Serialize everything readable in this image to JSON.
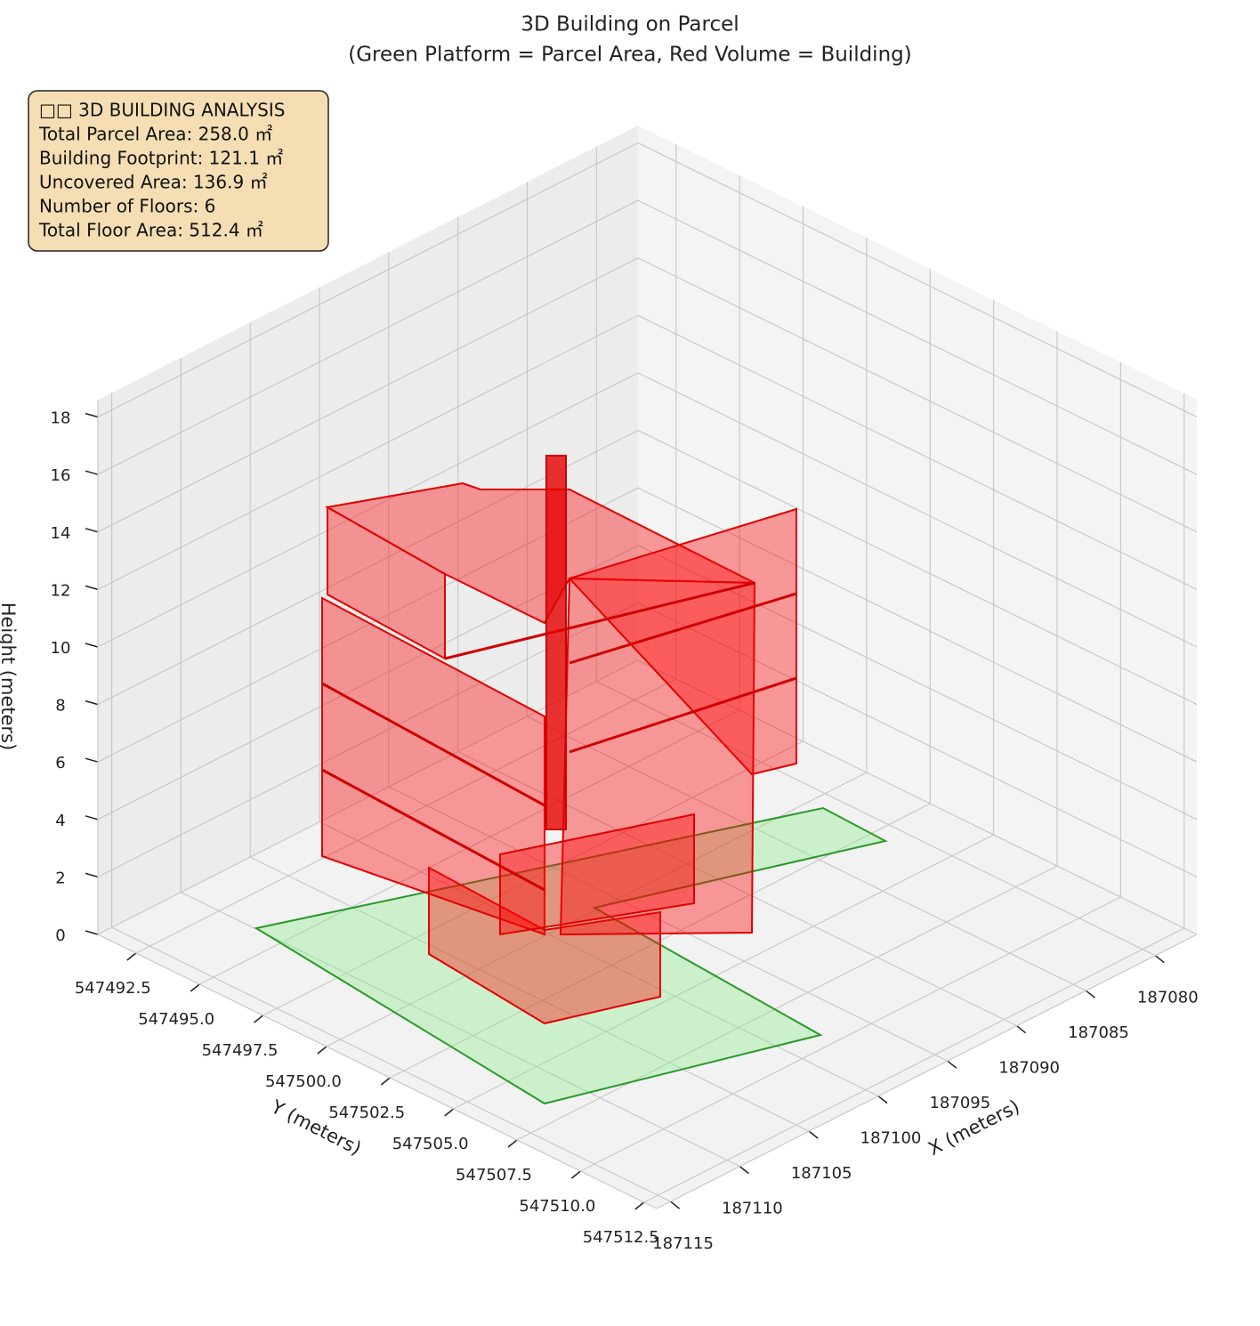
{
  "chart_data": {
    "type": "scatter3d",
    "title": "3D Building on Parcel",
    "subtitle": "(Green Platform = Parcel Area, Red Volume = Building)",
    "xlabel": "X (meters)",
    "ylabel": "Y (meters)",
    "zlabel": "Height (meters)",
    "xlim": [
      187077,
      187116
    ],
    "ylim": [
      547491,
      547513
    ],
    "zlim": [
      0,
      18.6
    ],
    "xticks": [
      187080,
      187085,
      187090,
      187095,
      187100,
      187105,
      187110,
      187115
    ],
    "yticks": [
      547492.5,
      {
        "value": 547495,
        "label": "547495.0"
      },
      547497.5,
      {
        "value": 547500,
        "label": "547500.0"
      },
      547502.5,
      {
        "value": 547505,
        "label": "547505.0"
      },
      547507.5,
      {
        "value": 547510,
        "label": "547510.0"
      },
      547512.5
    ],
    "zticks": [
      0,
      2,
      4,
      6,
      8,
      10,
      12,
      14,
      16,
      18
    ],
    "grid": true,
    "annotation": [
      "□□ 3D BUILDING ANALYSIS",
      "Total Parcel Area: 258.0 ㎡",
      "Building Footprint: 121.1 ㎡",
      "Uncovered Area: 136.9 ㎡",
      "Number of Floors: 6",
      "Total Floor Area: 512.4 ㎡"
    ]
  }
}
